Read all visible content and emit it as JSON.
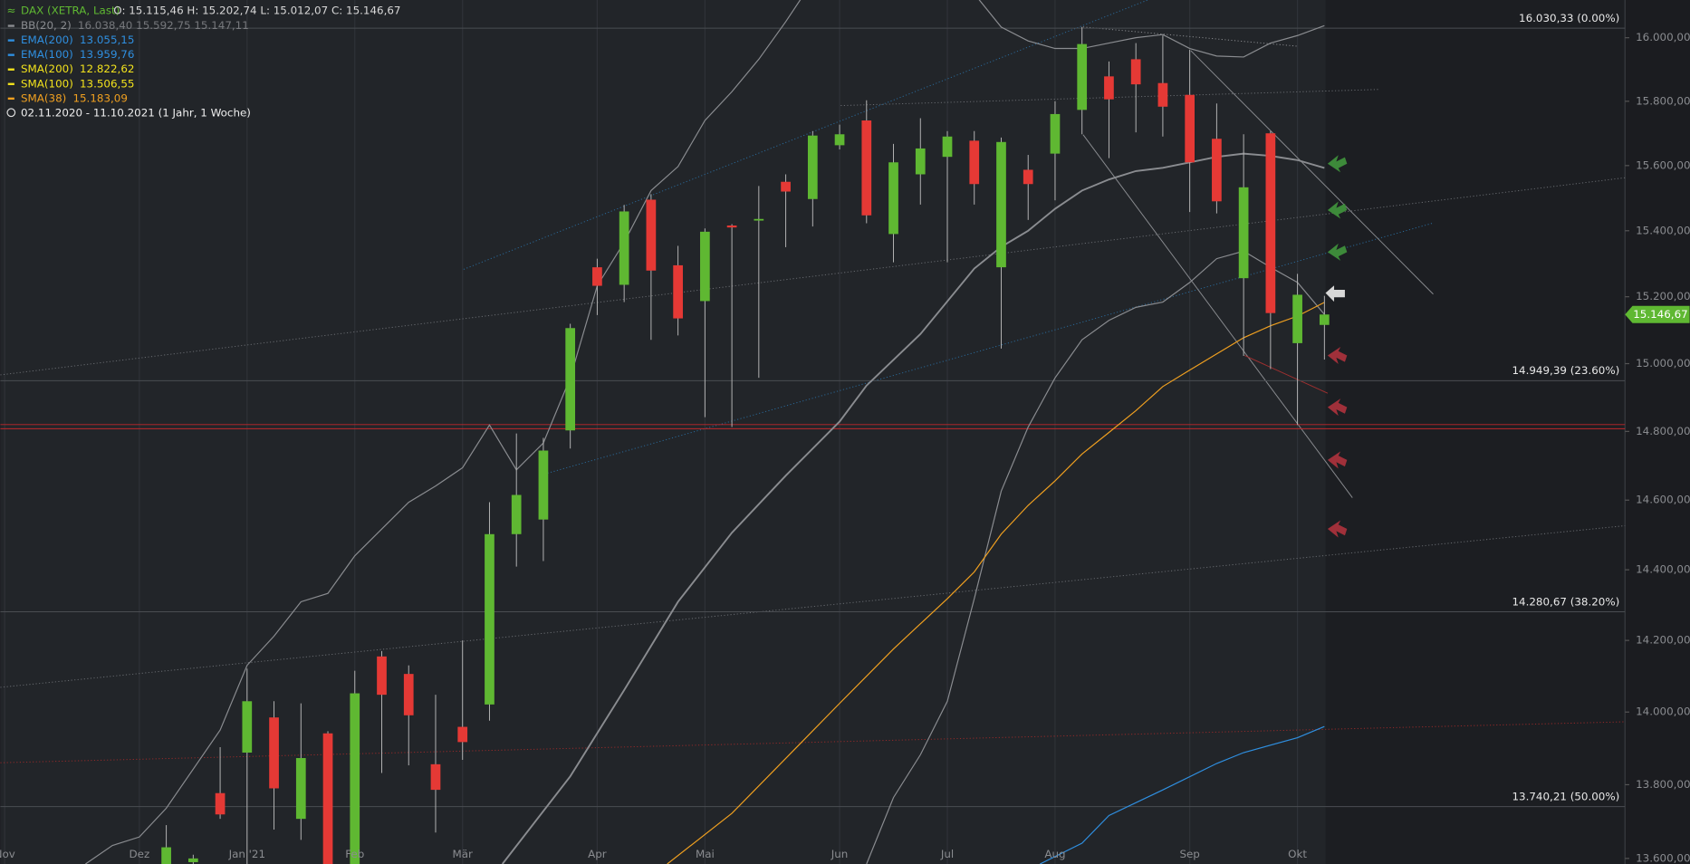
{
  "chart_data": {
    "type": "candlestick",
    "title": "DAX (XETRA, Last)",
    "ohlc_label": "O: 15.115,46  H: 15.202,74  L: 15.012,07  C: 15.146,67",
    "date_range": "02.11.2020 - 11.10.2021   (1 Jahr, 1 Woche)",
    "log_scale": true,
    "grid": true,
    "ylim": [
      13585,
      16120
    ],
    "yticks": [
      {
        "value": 13600,
        "label": "13.600,00"
      },
      {
        "value": 13800,
        "label": "13.800,00"
      },
      {
        "value": 14000,
        "label": "14.000,00"
      },
      {
        "value": 14200,
        "label": "14.200,00"
      },
      {
        "value": 14400,
        "label": "14.400,00"
      },
      {
        "value": 14600,
        "label": "14.600,00"
      },
      {
        "value": 14800,
        "label": "14.800,00"
      },
      {
        "value": 15000,
        "label": "15.000,00"
      },
      {
        "value": 15200,
        "label": "15.200,00"
      },
      {
        "value": 15400,
        "label": "15.400,00"
      },
      {
        "value": 15600,
        "label": "15.600,00"
      },
      {
        "value": 15800,
        "label": "15.800,00"
      },
      {
        "value": 16000,
        "label": "16.000,00"
      }
    ],
    "xlim": [
      -0.16,
      60.16
    ],
    "xticks": [
      {
        "value": 0,
        "label": "Nov"
      },
      {
        "value": 5,
        "label": "Dez"
      },
      {
        "value": 9,
        "label": "Jan '21"
      },
      {
        "value": 13,
        "label": "Feb"
      },
      {
        "value": 17,
        "label": "Mär"
      },
      {
        "value": 22,
        "label": "Apr"
      },
      {
        "value": 26,
        "label": "Mai"
      },
      {
        "value": 31,
        "label": "Jun"
      },
      {
        "value": 35,
        "label": "Jul"
      },
      {
        "value": 39,
        "label": "Aug"
      },
      {
        "value": 44,
        "label": "Sep"
      },
      {
        "value": 48,
        "label": "Okt"
      }
    ],
    "up_color": "#5fb832",
    "down_color": "#e53935",
    "candles": {
      "x": [
        6,
        7,
        8,
        9,
        10,
        11,
        12,
        13,
        14,
        15,
        16,
        17,
        18,
        19,
        20,
        21,
        22,
        23,
        24,
        25,
        26,
        27,
        28,
        29,
        30,
        31,
        32,
        33,
        34,
        35,
        36,
        37,
        38,
        39,
        40,
        41,
        42,
        43,
        44,
        45,
        46,
        47,
        48,
        49
      ],
      "open": [
        13540,
        13590,
        13777,
        13888,
        13985,
        13707,
        13941,
        13560,
        14155,
        14106,
        13856,
        13959,
        14021,
        14502,
        14544,
        14803,
        15289,
        15236,
        15495,
        15295,
        15187,
        15416,
        15432,
        15550,
        15497,
        15663,
        15740,
        15390,
        15573,
        15627,
        15677,
        15289,
        15587,
        15637,
        15773,
        15878,
        15932,
        15857,
        15820,
        15683,
        15256,
        15700,
        15061,
        15115.46
      ],
      "high": [
        13690,
        13610,
        13903,
        14121,
        14030,
        14024,
        13947,
        14115,
        14170,
        14130,
        14048,
        14200,
        14594,
        14794,
        14781,
        15119,
        15315,
        15479,
        15512,
        15354,
        15407,
        15420,
        15537,
        15573,
        15707,
        15727,
        15803,
        15667,
        15747,
        15707,
        15707,
        15687,
        15633,
        15800,
        16034,
        15925,
        15983,
        16007,
        15962,
        15793,
        15697,
        15707,
        15269,
        15202.74
      ],
      "low": [
        13500,
        13560,
        13707,
        13580,
        13678,
        13650,
        13500,
        13500,
        13832,
        13853,
        13670,
        13868,
        13976,
        14409,
        14425,
        14750,
        15145,
        15184,
        15071,
        15084,
        14842,
        14813,
        14958,
        15350,
        15413,
        15650,
        15423,
        15304,
        15480,
        15304,
        15480,
        15045,
        15433,
        15493,
        15697,
        15623,
        15703,
        15690,
        15457,
        15453,
        15023,
        14984,
        14819,
        15012.07
      ],
      "close": [
        13630,
        13600,
        13719,
        14030,
        13790,
        13873,
        13560,
        14052,
        14048,
        13991,
        13786,
        13917,
        14502,
        14615,
        14744,
        15106,
        15233,
        15459,
        15279,
        15135,
        15397,
        15410,
        15436,
        15520,
        15693,
        15697,
        15447,
        15610,
        15653,
        15690,
        15543,
        15673,
        15543,
        15760,
        15980,
        15806,
        15853,
        15783,
        15610,
        15490,
        15533,
        15151,
        15206,
        15146.67
      ]
    },
    "indicators": [
      {
        "name": "BB(20, 2)",
        "color": "#8a8c90",
        "value_label": "16.038,40  15.592,75  15.147,11",
        "lines": [
          {
            "x": [
              3,
              4,
              5,
              6,
              8,
              9,
              10,
              11,
              12,
              13,
              15,
              16,
              17,
              18,
              19,
              20,
              21,
              22,
              23,
              24,
              25,
              26,
              27,
              28,
              29,
              30,
              32,
              34,
              36,
              37,
              38,
              39,
              40,
              41,
              42,
              43,
              44,
              45,
              46,
              47,
              48,
              49
            ],
            "values": [
              13585,
              13635,
              13658,
              13736,
              13950,
              14130,
              14212,
              14309,
              14333,
              14440,
              14594,
              14641,
              14694,
              14819,
              14688,
              14766,
              14958,
              15233,
              15365,
              15523,
              15597,
              15740,
              15830,
              15932,
              16051,
              16180,
              16300,
              16260,
              16140,
              16034,
              15990,
              15966,
              15966,
              15983,
              16000,
              16010,
              15966,
              15942,
              15939,
              15983,
              16007,
              16038.4
            ]
          },
          {
            "x": [
              18.48,
              21,
              23,
              25,
              27,
              29,
              31,
              32,
              34,
              36,
              37,
              38,
              39,
              40,
              41,
              42,
              43,
              44,
              45,
              46,
              47,
              48,
              49
            ],
            "values": [
              13585,
              13823,
              14061,
              14309,
              14506,
              14671,
              14829,
              14935,
              15088,
              15285,
              15351,
              15400,
              15467,
              15523,
              15557,
              15583,
              15593,
              15610,
              15627,
              15637,
              15630,
              15617,
              15592.75
            ]
          },
          {
            "x": [
              32,
              33,
              34,
              35,
              36,
              37,
              38,
              39,
              40,
              41,
              42,
              43,
              44,
              45,
              46,
              47,
              48,
              49
            ],
            "values": [
              13585,
              13765,
              13882,
              14030,
              14318,
              14626,
              14813,
              14958,
              15071,
              15129,
              15168,
              15184,
              15243,
              15315,
              15338,
              15289,
              15243,
              15147.11
            ]
          }
        ]
      },
      {
        "name": "EMA(200)",
        "color": "#2f8fe0",
        "value_label": "13.055,15",
        "lines": []
      },
      {
        "name": "EMA(100)",
        "color": "#2f8fe0",
        "value_label": "13.959,76",
        "lines": [
          {
            "x": [
              38.44,
              40,
              41,
              43,
              45,
              46,
              48,
              49
            ],
            "values": [
              13585,
              13641,
              13716,
              13786,
              13858,
              13888,
              13929,
              13959.76
            ]
          }
        ]
      },
      {
        "name": "SMA(200)",
        "color": "#f2e21c",
        "value_label": "12.822,62",
        "lines": []
      },
      {
        "name": "SMA(100)",
        "color": "#f2e21c",
        "value_label": "13.506,55",
        "lines": []
      },
      {
        "name": "SMA(38)",
        "color": "#f0a020",
        "value_label": "15.183,09",
        "lines": [
          {
            "x": [
              24.6,
              27,
              31,
              33,
              35,
              36,
              37,
              38,
              39,
              40,
              41,
              42,
              43,
              44,
              45,
              46,
              47,
              48,
              49
            ],
            "values": [
              13585,
              13722,
              14024,
              14176,
              14318,
              14394,
              14502,
              14585,
              14656,
              14734,
              14797,
              14861,
              14932,
              14981,
              15029,
              15077,
              15113,
              15142,
              15183.09
            ]
          }
        ]
      }
    ],
    "fib_levels": [
      {
        "value": 16030.33,
        "label": "16.030,33 (0.00%)"
      },
      {
        "value": 14949.39,
        "label": "14.949,39 (23.60%)"
      },
      {
        "value": 14280.67,
        "label": "14.280,67 (38.20%)"
      },
      {
        "value": 13740.21,
        "label": "13.740,21 (50.00%)"
      }
    ],
    "support_lines": {
      "color": "#c0282c",
      "values": [
        14820,
        14808
      ]
    },
    "last_price": {
      "value": 15146.67,
      "label": "15.146,67",
      "color": "#5fb832"
    }
  }
}
